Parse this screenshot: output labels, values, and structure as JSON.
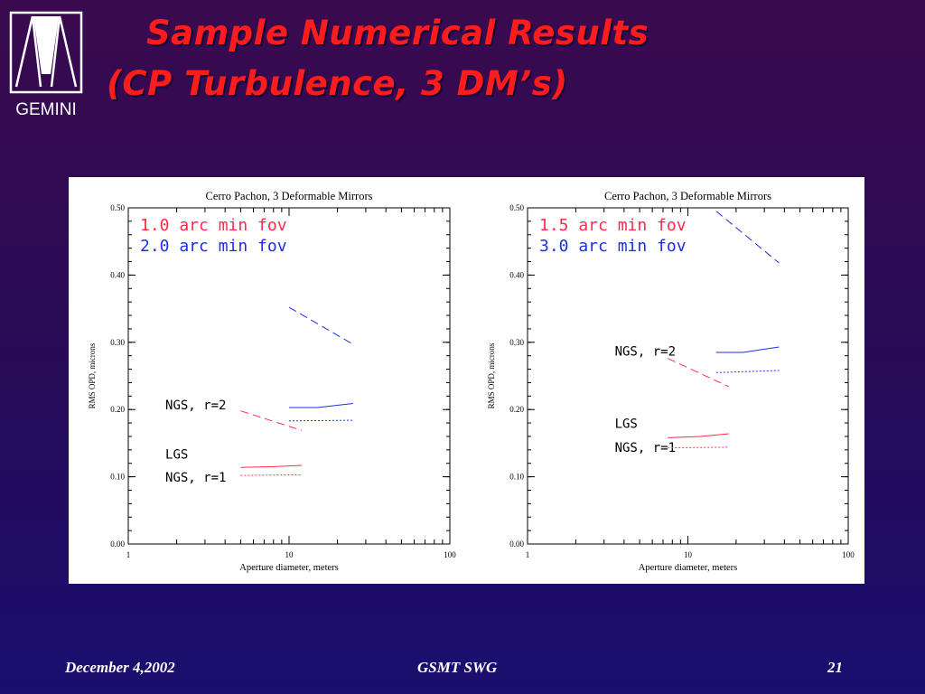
{
  "slide": {
    "title_line1": "Sample Numerical Results",
    "title_line2": "(CP Turbulence, 3 DM’s)",
    "logo_text": "GEMINI",
    "footer": {
      "date": "December 4,2002",
      "center": "GSMT SWG",
      "page": "21"
    }
  },
  "colors": {
    "red": "#ff2a4a",
    "blue": "#1d2ee6",
    "title": "#ff1c1c"
  },
  "chart_data": [
    {
      "type": "line",
      "title": "Cerro Pachon, 3 Deformable Mirrors",
      "xlabel": "Aperture diameter, meters",
      "ylabel": "RMS OPD, microns",
      "xscale": "log",
      "xlim": [
        1,
        100
      ],
      "ylim": [
        0,
        0.5
      ],
      "xticks": [
        "1",
        "10",
        "100"
      ],
      "yticks": [
        "0.00",
        "0.10",
        "0.20",
        "0.30",
        "0.40",
        "0.50"
      ],
      "legend": [
        {
          "text": "1.0 arc min fov",
          "color": "red"
        },
        {
          "text": "2.0 arc min fov",
          "color": "blue"
        }
      ],
      "annotations": [
        {
          "text": "NGS, r=2",
          "x": 1.7,
          "y": 0.2
        },
        {
          "text": "LGS",
          "x": 1.7,
          "y": 0.127
        },
        {
          "text": "NGS, r=1",
          "x": 1.7,
          "y": 0.093
        }
      ],
      "series": [
        {
          "color": "red",
          "style": "dashed",
          "x": [
            5,
            12
          ],
          "y": [
            0.198,
            0.169
          ]
        },
        {
          "color": "red",
          "style": "solid",
          "x": [
            5,
            8,
            12
          ],
          "y": [
            0.114,
            0.115,
            0.117
          ]
        },
        {
          "color": "red",
          "style": "dotted",
          "x": [
            5,
            12
          ],
          "y": [
            0.102,
            0.103
          ]
        },
        {
          "color": "blue",
          "style": "dashed",
          "x": [
            10,
            25
          ],
          "y": [
            0.352,
            0.297
          ]
        },
        {
          "color": "blue",
          "style": "solid",
          "x": [
            10,
            15,
            25
          ],
          "y": [
            0.203,
            0.203,
            0.209
          ]
        },
        {
          "color": "blue",
          "style": "dotted",
          "x": [
            10,
            25
          ],
          "y": [
            0.183,
            0.184
          ]
        }
      ]
    },
    {
      "type": "line",
      "title": "Cerro Pachon, 3 Deformable Mirrors",
      "xlabel": "Aperture diameter, meters",
      "ylabel": "RMS OPD, microns",
      "xscale": "log",
      "xlim": [
        1,
        100
      ],
      "ylim": [
        0,
        0.5
      ],
      "xticks": [
        "1",
        "10",
        "100"
      ],
      "yticks": [
        "0.00",
        "0.10",
        "0.20",
        "0.30",
        "0.40",
        "0.50"
      ],
      "legend": [
        {
          "text": "1.5 arc min fov",
          "color": "red"
        },
        {
          "text": "3.0 arc min fov",
          "color": "blue"
        }
      ],
      "annotations": [
        {
          "text": "NGS, r=2",
          "x": 3.5,
          "y": 0.28
        },
        {
          "text": "LGS",
          "x": 3.5,
          "y": 0.173
        },
        {
          "text": "NGS, r=1",
          "x": 3.5,
          "y": 0.137
        }
      ],
      "series": [
        {
          "color": "red",
          "style": "dashed",
          "x": [
            7.5,
            18
          ],
          "y": [
            0.276,
            0.234
          ]
        },
        {
          "color": "red",
          "style": "solid",
          "x": [
            7.5,
            12,
            18
          ],
          "y": [
            0.158,
            0.16,
            0.164
          ]
        },
        {
          "color": "red",
          "style": "dotted",
          "x": [
            7.5,
            18
          ],
          "y": [
            0.143,
            0.144
          ]
        },
        {
          "color": "blue",
          "style": "dashed",
          "x": [
            15,
            37
          ],
          "y": [
            0.495,
            0.418
          ]
        },
        {
          "color": "blue",
          "style": "solid",
          "x": [
            15,
            22,
            37
          ],
          "y": [
            0.285,
            0.285,
            0.293
          ]
        },
        {
          "color": "blue",
          "style": "dotted",
          "x": [
            15,
            37
          ],
          "y": [
            0.255,
            0.258
          ]
        }
      ]
    }
  ]
}
